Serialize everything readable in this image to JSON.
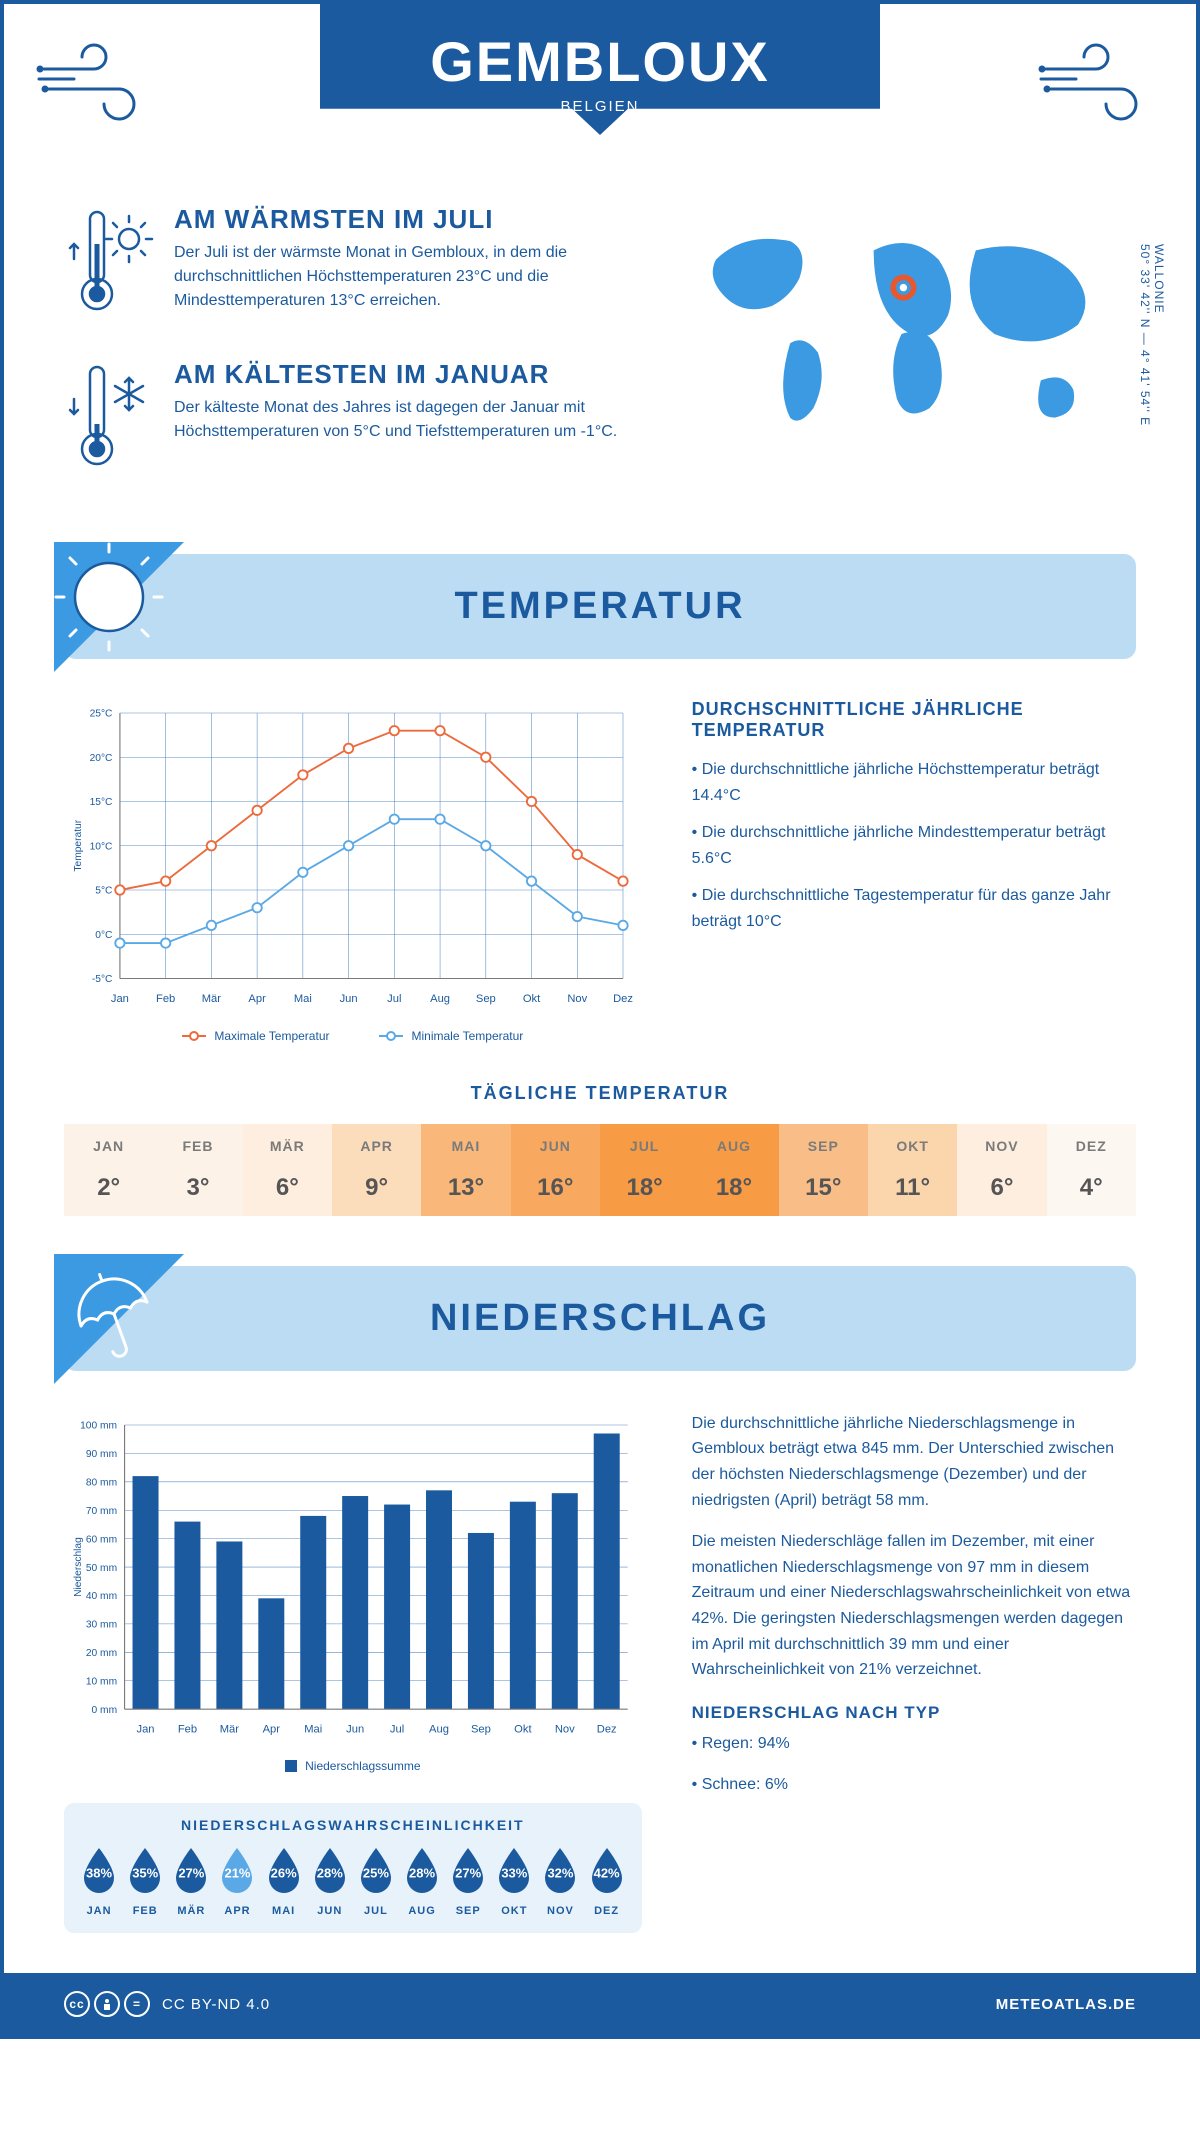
{
  "header": {
    "city": "GEMBLOUX",
    "country": "BELGIEN"
  },
  "coords": {
    "region": "WALLONIE",
    "lat_lon": "50° 33' 42'' N — 4° 41' 54'' E"
  },
  "facts": {
    "warmest": {
      "title": "AM WÄRMSTEN IM JULI",
      "text": "Der Juli ist der wärmste Monat in Gembloux, in dem die durchschnittlichen Höchsttemperaturen 23°C und die Mindesttemperaturen 13°C erreichen."
    },
    "coldest": {
      "title": "AM KÄLTESTEN IM JANUAR",
      "text": "Der kälteste Monat des Jahres ist dagegen der Januar mit Höchsttemperaturen von 5°C und Tiefsttemperaturen um -1°C."
    }
  },
  "temperature": {
    "section_title": "TEMPERATUR",
    "months": [
      "Jan",
      "Feb",
      "Mär",
      "Apr",
      "Mai",
      "Jun",
      "Jul",
      "Aug",
      "Sep",
      "Okt",
      "Nov",
      "Dez"
    ],
    "max_series": [
      5,
      6,
      10,
      14,
      18,
      21,
      23,
      23,
      20,
      15,
      9,
      6
    ],
    "min_series": [
      -1,
      -1,
      1,
      3,
      7,
      10,
      13,
      13,
      10,
      6,
      2,
      1
    ],
    "y_axis_label": "Temperatur",
    "y_ticks": [
      -5,
      0,
      5,
      10,
      15,
      20,
      25
    ],
    "y_tick_labels": [
      "-5°C",
      "0°C",
      "5°C",
      "10°C",
      "15°C",
      "20°C",
      "25°C"
    ],
    "ylim": [
      -5,
      25
    ],
    "colors": {
      "max": "#ec6a3c",
      "min": "#5aa9e6",
      "grid": "#5a8bc4",
      "axis": "#7a7a7a",
      "point_fill": "#ffffff"
    },
    "line_width": 2,
    "marker_size": 5,
    "legend": {
      "max": "Maximale Temperatur",
      "min": "Minimale Temperatur"
    },
    "info": {
      "title": "DURCHSCHNITTLICHE JÄHRLICHE TEMPERATUR",
      "bullets": [
        "• Die durchschnittliche jährliche Höchsttemperatur beträgt 14.4°C",
        "• Die durchschnittliche jährliche Mindesttemperatur beträgt 5.6°C",
        "• Die durchschnittliche Tagestemperatur für das ganze Jahr beträgt 10°C"
      ]
    }
  },
  "daily_temp": {
    "title": "TÄGLICHE TEMPERATUR",
    "months": [
      "JAN",
      "FEB",
      "MÄR",
      "APR",
      "MAI",
      "JUN",
      "JUL",
      "AUG",
      "SEP",
      "OKT",
      "NOV",
      "DEZ"
    ],
    "values": [
      "2°",
      "3°",
      "6°",
      "9°",
      "13°",
      "16°",
      "18°",
      "18°",
      "15°",
      "11°",
      "6°",
      "4°"
    ],
    "bg_colors": [
      "#fdf2e8",
      "#fdf2e8",
      "#fdeedf",
      "#fbdcbb",
      "#f9b779",
      "#f8a95f",
      "#f79b44",
      "#f79b44",
      "#f9be87",
      "#fbd5ac",
      "#fdeedf",
      "#fdf7f1"
    ]
  },
  "precipitation": {
    "section_title": "NIEDERSCHLAG",
    "months": [
      "Jan",
      "Feb",
      "Mär",
      "Apr",
      "Mai",
      "Jun",
      "Jul",
      "Aug",
      "Sep",
      "Okt",
      "Nov",
      "Dez"
    ],
    "values": [
      82,
      66,
      59,
      39,
      68,
      75,
      72,
      77,
      62,
      73,
      76,
      97
    ],
    "y_axis_label": "Niederschlag",
    "y_ticks": [
      0,
      10,
      20,
      30,
      40,
      50,
      60,
      70,
      80,
      90,
      100
    ],
    "y_tick_labels": [
      "0 mm",
      "10 mm",
      "20 mm",
      "30 mm",
      "40 mm",
      "50 mm",
      "60 mm",
      "70 mm",
      "80 mm",
      "90 mm",
      "100 mm"
    ],
    "ylim": [
      0,
      100
    ],
    "bar_color": "#1b5a9e",
    "grid_color": "#5a8bc4",
    "bar_width": 0.62,
    "legend_label": "Niederschlagssumme",
    "text": {
      "p1": "Die durchschnittliche jährliche Niederschlagsmenge in Gembloux beträgt etwa 845 mm. Der Unterschied zwischen der höchsten Niederschlagsmenge (Dezember) und der niedrigsten (April) beträgt 58 mm.",
      "p2": "Die meisten Niederschläge fallen im Dezember, mit einer monatlichen Niederschlagsmenge von 97 mm in diesem Zeitraum und einer Niederschlagswahrscheinlichkeit von etwa 42%. Die geringsten Niederschlagsmengen werden dagegen im April mit durchschnittlich 39 mm und einer Wahrscheinlichkeit von 21% verzeichnet."
    },
    "by_type": {
      "title": "NIEDERSCHLAG NACH TYP",
      "items": [
        "• Regen: 94%",
        "• Schnee: 6%"
      ]
    }
  },
  "probability": {
    "title": "NIEDERSCHLAGSWAHRSCHEINLICHKEIT",
    "months": [
      "JAN",
      "FEB",
      "MÄR",
      "APR",
      "MAI",
      "JUN",
      "JUL",
      "AUG",
      "SEP",
      "OKT",
      "NOV",
      "DEZ"
    ],
    "values": [
      "38%",
      "35%",
      "27%",
      "21%",
      "26%",
      "28%",
      "25%",
      "28%",
      "27%",
      "33%",
      "32%",
      "42%"
    ],
    "colors": [
      "#1b5a9e",
      "#1b5a9e",
      "#1b5a9e",
      "#5aa9e6",
      "#1b5a9e",
      "#1b5a9e",
      "#1b5a9e",
      "#1b5a9e",
      "#1b5a9e",
      "#1b5a9e",
      "#1b5a9e",
      "#1b5a9e"
    ]
  },
  "footer": {
    "license": "CC BY-ND 4.0",
    "site": "METEOATLAS.DE"
  }
}
